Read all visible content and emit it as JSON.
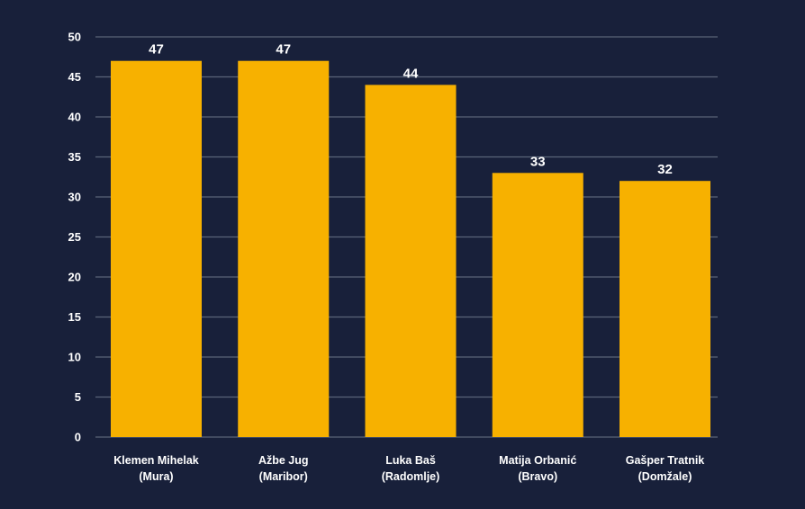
{
  "chart_data": {
    "type": "bar",
    "title": "",
    "xlabel": "",
    "ylabel": "",
    "categories": [
      [
        "Klemen Mihelak",
        "(Mura)"
      ],
      [
        "Ažbe Jug",
        "(Maribor)"
      ],
      [
        "Luka Baš",
        "(Radomlje)"
      ],
      [
        "Matija Orbanić",
        "(Bravo)"
      ],
      [
        "Gašper Tratnik",
        "(Domžale)"
      ]
    ],
    "values": [
      47,
      47,
      44,
      33,
      32
    ],
    "ylim": [
      0,
      50
    ],
    "yticks": [
      0,
      5,
      10,
      15,
      20,
      25,
      30,
      35,
      40,
      45,
      50
    ],
    "grid": true,
    "legend": "none"
  },
  "colors": {
    "background": "#18203a",
    "bar": "#f7b100",
    "grid": "#5a6478",
    "text": "#ffffff"
  }
}
